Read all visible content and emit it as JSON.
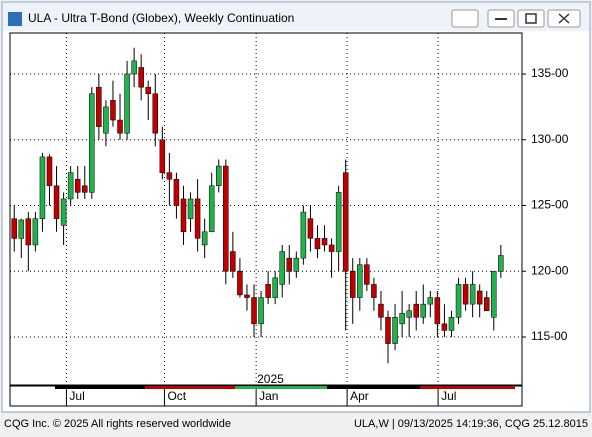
{
  "chart_data": {
    "type": "candlestick",
    "title": "ULA - Ultra T-Bond (Globex), Weekly Continuation",
    "open": [
      124,
      122.5,
      124,
      122,
      124,
      128.7,
      126.5,
      123.5,
      125.5,
      127,
      126.5,
      126,
      134,
      130.5,
      133,
      131.5,
      130.5,
      135,
      135.5,
      134,
      133.5,
      130,
      127.5,
      127,
      125.5,
      124,
      125.5,
      122,
      123,
      126.5,
      128,
      121.5,
      120,
      118.2,
      118,
      116,
      119,
      118,
      119,
      121,
      120,
      121,
      124,
      122.5,
      122.5,
      122,
      121.5,
      127.5,
      120,
      118,
      120.5,
      119,
      117.5,
      116.5,
      114.5,
      116,
      116.5,
      117.5,
      116.5,
      117.5,
      118,
      116,
      115.5,
      116.5,
      119,
      117.5,
      118.5,
      118,
      116.5,
      120
    ],
    "high": [
      125,
      124,
      124.5,
      124.5,
      129,
      128.9,
      128,
      126,
      128,
      128,
      128,
      134,
      135,
      133,
      134.5,
      133.5,
      136,
      137,
      136.5,
      134.5,
      135,
      131,
      129,
      127.5,
      126.5,
      126,
      127,
      124,
      127.5,
      128.5,
      128.5,
      123,
      121,
      119,
      119,
      118.5,
      120,
      120,
      122,
      122,
      121.5,
      125,
      125,
      123.5,
      123.5,
      122.5,
      126.5,
      128.5,
      121,
      121,
      121,
      119.5,
      118.5,
      117,
      117.5,
      118.5,
      117.5,
      118.5,
      119,
      118.5,
      118.5,
      117.5,
      117,
      119.5,
      119.5,
      120,
      119,
      118.5,
      120,
      122
    ],
    "low": [
      121.5,
      121,
      120,
      121.5,
      123,
      125,
      123,
      122,
      125,
      125.5,
      125.5,
      125.5,
      130,
      129.5,
      131,
      130,
      130,
      134,
      133,
      131.5,
      129.5,
      127,
      125,
      124,
      122,
      123,
      121.5,
      121,
      123,
      126,
      119,
      119.5,
      118,
      117,
      115,
      115,
      117.5,
      117.5,
      118,
      119,
      119.5,
      120.5,
      121.5,
      121,
      121.5,
      119.5,
      120,
      115.5,
      116,
      117,
      118.5,
      117,
      115.5,
      113,
      114,
      115,
      115,
      115.5,
      116,
      116.5,
      115,
      115,
      115,
      116,
      117,
      116.5,
      116.5,
      117,
      115.5,
      119.5
    ],
    "close": [
      122.5,
      123.9,
      122,
      124,
      128.7,
      126.5,
      124,
      125.5,
      127.5,
      126,
      126,
      133.5,
      131,
      132.5,
      131.5,
      130.5,
      135,
      136,
      134,
      133.5,
      130.5,
      127.5,
      127,
      125,
      123,
      125.5,
      122.5,
      123,
      126.5,
      128,
      120,
      120,
      118.2,
      118,
      116,
      118,
      118,
      119.5,
      121.5,
      120,
      121,
      124.5,
      122.5,
      121.7,
      122,
      121.5,
      126,
      120,
      118,
      120.5,
      119,
      118,
      116.5,
      114.5,
      116.5,
      116.8,
      117,
      116.5,
      117.5,
      118,
      116,
      115.5,
      116.5,
      119,
      117.5,
      119,
      117.5,
      117,
      120,
      121.2
    ],
    "up_color": "#22b14c",
    "down_color": "#c00000",
    "xlim": [
      -0.6,
      72
    ],
    "xticks": [
      {
        "value": 7.4,
        "label": "Jul"
      },
      {
        "value": 21.3,
        "label": "Oct"
      },
      {
        "value": 34.3,
        "label": "Jan"
      },
      {
        "value": 47.2,
        "label": "Apr"
      },
      {
        "value": 60.1,
        "label": "Jul"
      }
    ],
    "year_label": {
      "value": 34.3,
      "label": "2025"
    },
    "ylim": [
      111.35,
      138.12
    ],
    "yticks": [
      {
        "value": 115,
        "label": "115-00"
      },
      {
        "value": 120,
        "label": "120-00"
      },
      {
        "value": 125,
        "label": "125-00"
      },
      {
        "value": 130,
        "label": "130-00"
      },
      {
        "value": 135,
        "label": "135-00"
      }
    ],
    "grid": true
  },
  "footer": {
    "left": "CQG Inc. © 2025 All rights reserved worldwide",
    "right": "ULA,W | 09/13/2025 14:19:36, CQG 25.12.8015"
  }
}
